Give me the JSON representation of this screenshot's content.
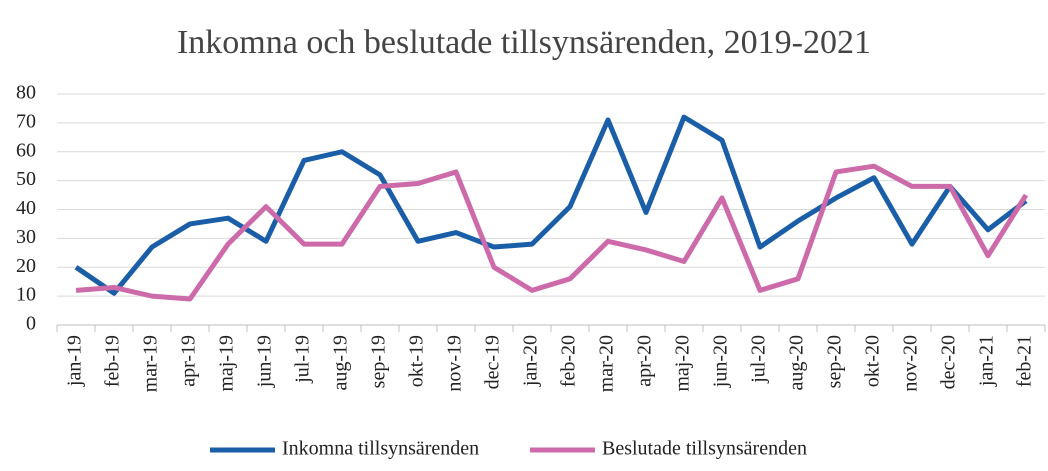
{
  "chart_data": {
    "type": "line",
    "title": "Inkomna och beslutade tillsynsärenden, 2019-2021",
    "categories": [
      "jan-19",
      "feb-19",
      "mar-19",
      "apr-19",
      "maj-19",
      "jun-19",
      "jul-19",
      "aug-19",
      "sep-19",
      "okt-19",
      "nov-19",
      "dec-19",
      "jan-20",
      "feb-20",
      "mar-20",
      "apr-20",
      "maj-20",
      "jun-20",
      "jul-20",
      "aug-20",
      "sep-20",
      "okt-20",
      "nov-20",
      "dec-20",
      "jan-21",
      "feb-21"
    ],
    "series": [
      {
        "name": "Inkomna tillsynsärenden",
        "color": "#1a5ea8",
        "values": [
          20,
          11,
          27,
          35,
          37,
          29,
          57,
          60,
          52,
          29,
          32,
          27,
          28,
          41,
          71,
          39,
          72,
          64,
          27,
          36,
          44,
          51,
          28,
          48,
          33,
          43
        ]
      },
      {
        "name": "Beslutade tillsynsärenden",
        "color": "#cc6aaa",
        "values": [
          12,
          13,
          10,
          9,
          28,
          41,
          28,
          28,
          48,
          49,
          53,
          20,
          12,
          16,
          29,
          26,
          22,
          44,
          12,
          16,
          53,
          55,
          48,
          48,
          24,
          45
        ]
      }
    ],
    "ylim": [
      0,
      80
    ],
    "yticks": [
      0,
      10,
      20,
      30,
      40,
      50,
      60,
      70,
      80
    ],
    "grid": true,
    "legend": "bottom"
  }
}
